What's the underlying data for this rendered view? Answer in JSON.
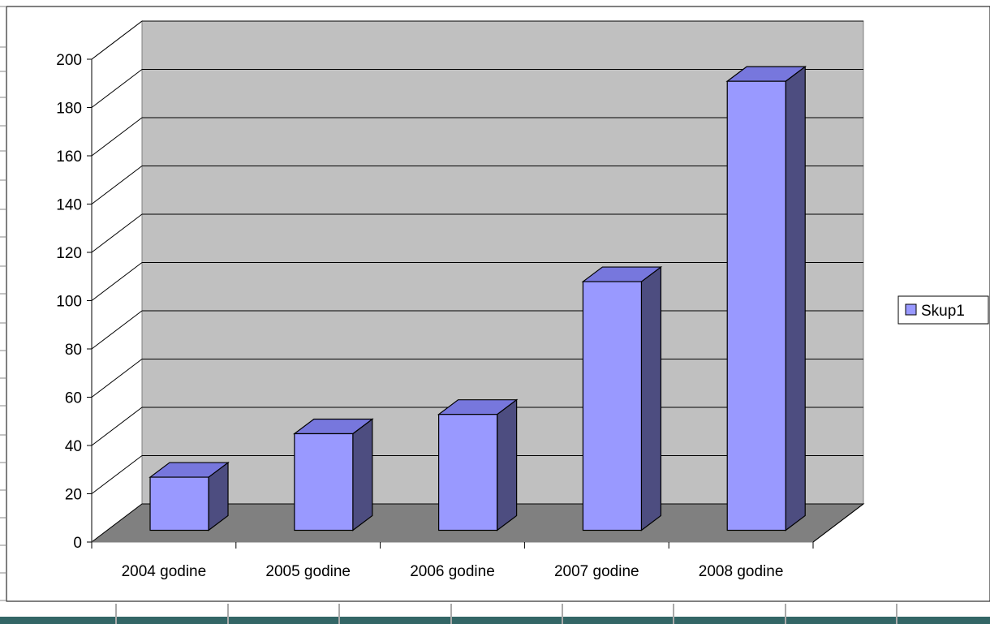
{
  "chart_data": {
    "type": "bar",
    "categories": [
      "2004 godine",
      "2005 godine",
      "2006 godine",
      "2007 godine",
      "2008 godine"
    ],
    "series": [
      {
        "name": "Skup1",
        "values": [
          22,
          40,
          48,
          103,
          186
        ]
      }
    ],
    "title": "",
    "xlabel": "",
    "ylabel": "",
    "ylim": [
      0,
      200
    ],
    "yticks": [
      0,
      20,
      40,
      60,
      80,
      100,
      120,
      140,
      160,
      180,
      200
    ],
    "grid": true,
    "legend": "right",
    "colors": {
      "bar_front": "#9999ff",
      "bar_top": "#7777dd",
      "bar_side": "#4d4d80",
      "back_wall": "#c0c0c0",
      "side_wall": "#ffffff",
      "floor": "#808080",
      "bottom_band": "#336666"
    }
  }
}
